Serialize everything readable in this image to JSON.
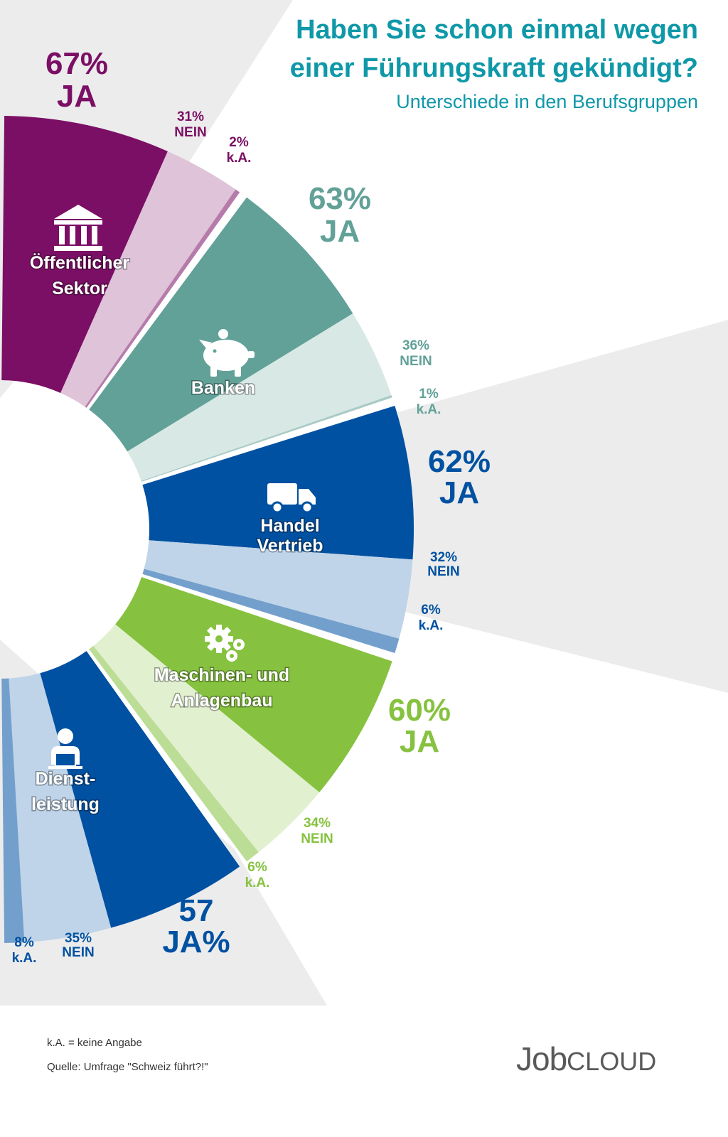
{
  "header": {
    "title_line1": "Haben Sie schon einmal wegen",
    "title_line2": "einer Führungskraft gekündigt?",
    "subtitle": "Unterschiede in den Berufsgruppen"
  },
  "footer": {
    "note": "k.A. = keine Angabe",
    "source": "Quelle: Umfrage \"Schweiz führt?!\"",
    "logo_job": "Job",
    "logo_cloud": "CLOUD"
  },
  "colors": {
    "background_ray": "#ececec",
    "oeffentlicher_sektor": "#7b0f65",
    "banken": "#62a198",
    "handel_vertrieb": "#0051a2",
    "maschinen_anlagenbau": "#86c240",
    "dienstleistung": "#0051a2"
  },
  "chart_data": {
    "type": "pie",
    "series": [
      {
        "name": "Öffentlicher Sektor",
        "category_lines": [
          "Öffentlicher",
          "Sektor"
        ],
        "icon": "bank-building-icon",
        "color": "#7b0f65",
        "ja": 67,
        "nein": 31,
        "ka": 2,
        "ja_label": [
          "67%",
          "JA"
        ],
        "nein_label": [
          "31%",
          "NEIN"
        ],
        "ka_label": [
          "2%",
          "k.A."
        ]
      },
      {
        "name": "Banken",
        "category_lines": [
          "Banken"
        ],
        "icon": "piggy-bank-icon",
        "color": "#62a198",
        "ja": 63,
        "nein": 36,
        "ka": 1,
        "ja_label": [
          "63%",
          "JA"
        ],
        "nein_label": [
          "36%",
          "NEIN"
        ],
        "ka_label": [
          "1%",
          "k.A."
        ]
      },
      {
        "name": "Handel Vertrieb",
        "category_lines": [
          "Handel",
          "Vertrieb"
        ],
        "icon": "delivery-truck-icon",
        "color": "#0051a2",
        "ja": 62,
        "nein": 32,
        "ka": 6,
        "ja_label": [
          "62%",
          "JA"
        ],
        "nein_label": [
          "32%",
          "NEIN"
        ],
        "ka_label": [
          "6%",
          "k.A."
        ]
      },
      {
        "name": "Maschinen- und Anlagenbau",
        "category_lines": [
          "Maschinen- und",
          "Anlagenbau"
        ],
        "icon": "gears-icon",
        "color": "#86c240",
        "ja": 60,
        "nein": 34,
        "ka": 6,
        "ja_label": [
          "60%",
          "JA"
        ],
        "nein_label": [
          "34%",
          "NEIN"
        ],
        "ka_label": [
          "6%",
          "k.A."
        ]
      },
      {
        "name": "Dienstleistung",
        "category_lines": [
          "Dienst-",
          "leistung"
        ],
        "icon": "service-person-icon",
        "color": "#0051a2",
        "ja": 57,
        "nein": 35,
        "ka": 8,
        "ja_label": [
          "57",
          "JA%"
        ],
        "nein_label": [
          "35%",
          "NEIN"
        ],
        "ka_label": [
          "8%",
          "k.A."
        ]
      }
    ]
  }
}
